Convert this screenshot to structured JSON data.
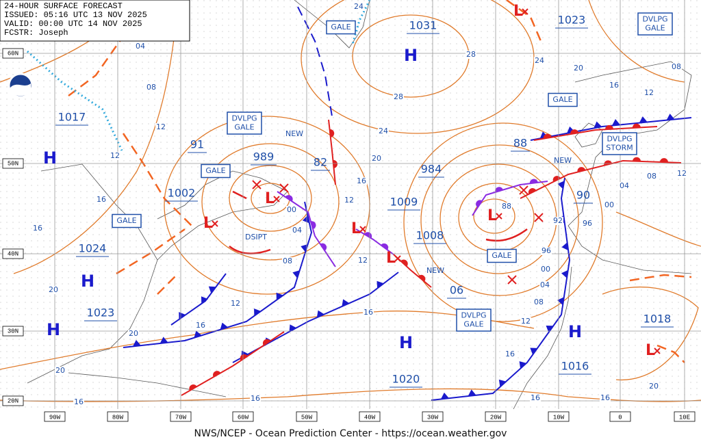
{
  "header": {
    "lines": [
      "24-HOUR SURFACE FORECAST",
      "ISSUED: 05:16 UTC 13 NOV 2025",
      "VALID: 00:00 UTC 14 NOV 2025",
      "FCSTR: Joseph"
    ]
  },
  "footer": "NWS/NCEP - Ocean Prediction Center - https://ocean.weather.gov",
  "lat_labels": [
    "60N",
    "50N",
    "40N",
    "30N",
    "20N"
  ],
  "lon_labels": [
    "90W",
    "80W",
    "70W",
    "60W",
    "50W",
    "40W",
    "30W",
    "20W",
    "10W",
    "0",
    "10E"
  ],
  "pressures": [
    "1031",
    "1023",
    "1017",
    "91",
    "989",
    "82",
    "984",
    "88",
    "1002",
    "1009",
    "90",
    "1008",
    "1024",
    "06",
    "1023",
    "1018",
    "1016",
    "1020"
  ],
  "highs": [
    "H",
    "H",
    "H",
    "H",
    "H",
    "H"
  ],
  "lows": [
    "L",
    "L",
    "L",
    "L",
    "L",
    "L",
    "L"
  ],
  "warnings": [
    {
      "lines": [
        "GALE"
      ]
    },
    {
      "lines": [
        "DVLPG",
        "GALE"
      ]
    },
    {
      "lines": [
        "GALE"
      ]
    },
    {
      "lines": [
        "DVLPG",
        "GALE"
      ]
    },
    {
      "lines": [
        "DVLPG",
        "STORM"
      ]
    },
    {
      "lines": [
        "GALE"
      ]
    },
    {
      "lines": [
        "GALE"
      ]
    },
    {
      "lines": [
        "GALE"
      ]
    },
    {
      "lines": [
        "DVLPG",
        "GALE"
      ]
    }
  ],
  "annotations": [
    "NEW",
    "NEW",
    "NEW",
    "DSIPT"
  ],
  "isobar_labels": [
    "24",
    "04",
    "28",
    "24",
    "20",
    "08",
    "16",
    "12",
    "28",
    "08",
    "12",
    "24",
    "12",
    "20",
    "16",
    "12",
    "04",
    "08",
    "12",
    "00",
    "16",
    "00",
    "96",
    "92",
    "88",
    "16",
    "04",
    "96",
    "08",
    "12",
    "00",
    "04",
    "20",
    "08",
    "12",
    "16",
    "12",
    "16",
    "20",
    "16",
    "20",
    "20",
    "16",
    "16",
    "16",
    "16"
  ]
}
